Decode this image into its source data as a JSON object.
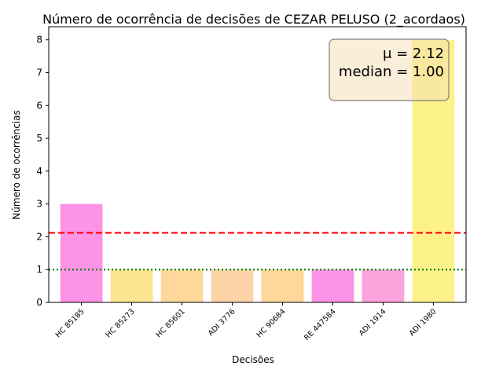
{
  "chart_data": {
    "type": "bar",
    "title": "Número de ocorrência de decisões de CEZAR PELUSO (2_acordaos)",
    "xlabel": "Decisões",
    "ylabel": "Número de ocorrências",
    "categories": [
      "HC 85185",
      "HC 85273",
      "HC 85601",
      "ADI 3776",
      "HC 90684",
      "RE 447584",
      "ADI 1914",
      "ADI 1980"
    ],
    "values": [
      3,
      1,
      1,
      1,
      1,
      1,
      1,
      8
    ],
    "colors": [
      "#fc94e6",
      "#fde48e",
      "#fdd89a",
      "#fdd3a8",
      "#fdd89a",
      "#fc94e6",
      "#fca2dc",
      "#fdf28a"
    ],
    "ylim": [
      0,
      8.4
    ],
    "yticks": [
      0,
      1,
      2,
      3,
      4,
      5,
      6,
      7,
      8
    ],
    "grid": false,
    "reference_lines": [
      {
        "value": 2.12,
        "color": "#ff0000",
        "style": "dashed"
      },
      {
        "value": 1.0,
        "color": "#008000",
        "style": "dotted"
      }
    ],
    "stats_box": {
      "mean_symbol": "μ",
      "mean_value": "2.12",
      "median_label": "median",
      "median_value": "1.00",
      "placement": "top-right",
      "background": "#f5deb3",
      "border": "#808080"
    }
  }
}
